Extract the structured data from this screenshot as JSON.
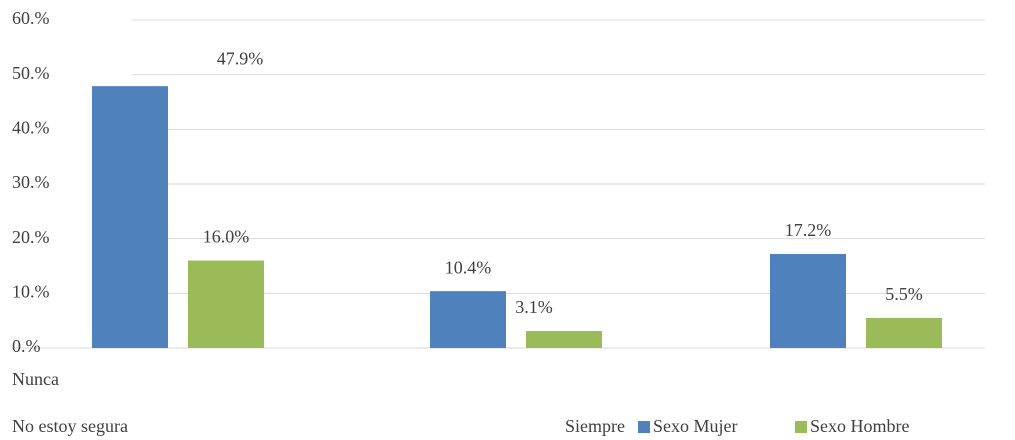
{
  "chart_data": {
    "type": "bar",
    "categories": [
      "Nunca",
      "No estoy segura",
      "Siempre"
    ],
    "series": [
      {
        "name": "Sexo Mujer",
        "color": "#4f81bd",
        "values": [
          47.9,
          10.4,
          17.2
        ],
        "value_labels": [
          "47.9%",
          "10.4%",
          "17.2%"
        ]
      },
      {
        "name": "Sexo Hombre",
        "color": "#9bbb59",
        "values": [
          16.0,
          3.1,
          5.5
        ],
        "value_labels": [
          "16.0%",
          "3.1%",
          "5.5%"
        ]
      }
    ],
    "ylim": [
      0,
      60
    ],
    "yticks": [
      {
        "value": 0,
        "label": "0.%"
      },
      {
        "value": 10,
        "label": "10.%"
      },
      {
        "value": 20,
        "label": "20.%"
      },
      {
        "value": 30,
        "label": "30.%"
      },
      {
        "value": 40,
        "label": "40.%"
      },
      {
        "value": 50,
        "label": "50.%"
      },
      {
        "value": 60,
        "label": "60.%"
      }
    ],
    "grid": true
  }
}
